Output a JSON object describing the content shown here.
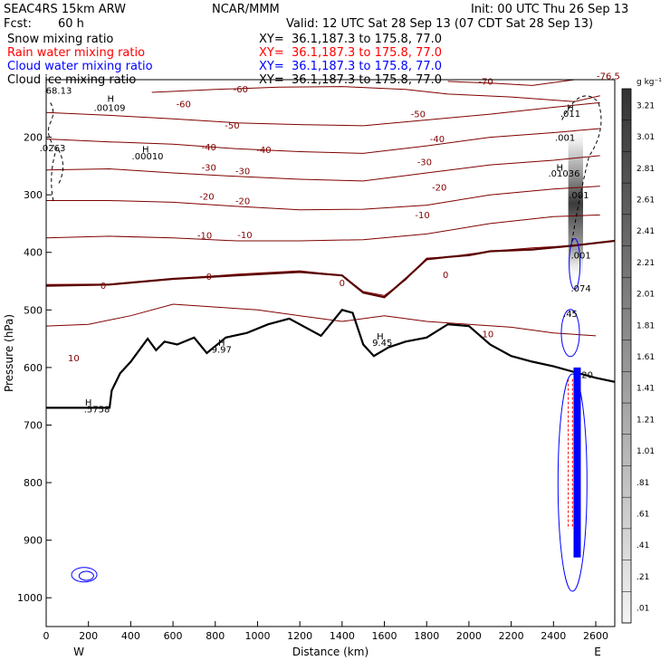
{
  "header": {
    "model": "SEAC4RS 15km ARW",
    "fcst_label": "Fcst:",
    "fcst_value": "60 h",
    "org": "NCAR/MMM",
    "init": "Init: 00 UTC Thu 26 Sep 13",
    "valid": "Valid: 12 UTC Sat 28 Sep 13 (07 CDT Sat 28 Sep 13)"
  },
  "fields": [
    {
      "name": "Snow mixing ratio",
      "xy": "XY=  36.1,187.3 to 175.8, 77.0",
      "color": "#000000"
    },
    {
      "name": "Rain water mixing ratio",
      "xy": "XY=  36.1,187.3 to 175.8, 77.0",
      "color": "#ff0000"
    },
    {
      "name": "Cloud water mixing ratio",
      "xy": "XY=  36.1,187.3 to 175.8, 77.0",
      "color": "#0000ff"
    },
    {
      "name": "Cloud ice mixing ratio",
      "xy": "XY=  36.1,187.3 to 175.8, 77.0",
      "color": "#000000"
    }
  ],
  "chart_data": {
    "type": "contour-cross-section",
    "ylabel": "Pressure (hPa)",
    "xlabel": "Distance (km)",
    "x_ticks": [
      0,
      200,
      400,
      600,
      800,
      1000,
      1200,
      1400,
      1600,
      1800,
      2000,
      2200,
      2400,
      2600
    ],
    "y_ticks": [
      200,
      300,
      400,
      500,
      600,
      700,
      800,
      900,
      1000
    ],
    "xlim": [
      0,
      2690
    ],
    "ylim": [
      100,
      1050
    ],
    "x_end_labels": {
      "left": "W",
      "right": "E"
    },
    "colorbar": {
      "unit": "g kg⁻¹",
      "labels": [
        "3.21",
        "3.01",
        "2.81",
        "2.61",
        "2.41",
        "2.21",
        "2.01",
        "1.81",
        "1.61",
        "1.41",
        "1.21",
        "1.01",
        ".81",
        ".61",
        ".41",
        ".21",
        ".01"
      ]
    },
    "temperature_isotherms": [
      {
        "value": -70,
        "label": "-70",
        "points": [
          [
            1900,
            103
          ],
          [
            2100,
            106
          ],
          [
            2300,
            110
          ],
          [
            2500,
            100
          ]
        ]
      },
      {
        "value": -60,
        "label": "-60",
        "points": [
          [
            500,
            122
          ],
          [
            800,
            117
          ],
          [
            1100,
            113
          ],
          [
            1400,
            112
          ],
          [
            1700,
            117
          ],
          [
            1900,
            125
          ],
          [
            2200,
            130
          ],
          [
            2500,
            138
          ],
          [
            2620,
            128
          ]
        ]
      },
      {
        "value": -50,
        "label": "-50",
        "points": [
          [
            0,
            157
          ],
          [
            300,
            162
          ],
          [
            600,
            168
          ],
          [
            900,
            175
          ],
          [
            1200,
            178
          ],
          [
            1500,
            180
          ],
          [
            1800,
            170
          ],
          [
            2100,
            160
          ],
          [
            2400,
            148
          ],
          [
            2620,
            140
          ]
        ]
      },
      {
        "value": -40,
        "label": "-40",
        "points": [
          [
            0,
            203
          ],
          [
            300,
            208
          ],
          [
            600,
            212
          ],
          [
            900,
            220
          ],
          [
            1200,
            225
          ],
          [
            1500,
            228
          ],
          [
            1800,
            215
          ],
          [
            2100,
            200
          ],
          [
            2400,
            192
          ],
          [
            2620,
            185
          ]
        ]
      },
      {
        "value": -30,
        "label": "-30",
        "points": [
          [
            0,
            257
          ],
          [
            300,
            255
          ],
          [
            600,
            262
          ],
          [
            900,
            268
          ],
          [
            1200,
            273
          ],
          [
            1500,
            276
          ],
          [
            1800,
            262
          ],
          [
            2100,
            248
          ],
          [
            2400,
            240
          ],
          [
            2620,
            232
          ]
        ]
      },
      {
        "value": -20,
        "label": "-20",
        "points": [
          [
            0,
            310
          ],
          [
            300,
            310
          ],
          [
            600,
            313
          ],
          [
            900,
            320
          ],
          [
            1200,
            326
          ],
          [
            1500,
            325
          ],
          [
            1800,
            318
          ],
          [
            2100,
            300
          ],
          [
            2400,
            290
          ],
          [
            2620,
            285
          ]
        ]
      },
      {
        "value": -10,
        "label": "-10",
        "points": [
          [
            0,
            375
          ],
          [
            300,
            372
          ],
          [
            600,
            375
          ],
          [
            900,
            380
          ],
          [
            1200,
            380
          ],
          [
            1500,
            378
          ],
          [
            1800,
            368
          ],
          [
            2100,
            350
          ],
          [
            2400,
            338
          ],
          [
            2620,
            335
          ]
        ]
      },
      {
        "value": 0,
        "label": "0",
        "points": [
          [
            0,
            456
          ],
          [
            300,
            455
          ],
          [
            600,
            446
          ],
          [
            900,
            438
          ],
          [
            1200,
            432
          ],
          [
            1400,
            440
          ],
          [
            1500,
            468
          ],
          [
            1600,
            475
          ],
          [
            1700,
            448
          ],
          [
            1800,
            410
          ],
          [
            1900,
            408
          ],
          [
            2100,
            398
          ],
          [
            2300,
            392
          ],
          [
            2500,
            388
          ],
          [
            2690,
            380
          ]
        ]
      },
      {
        "value": 10,
        "label": "10",
        "points": [
          [
            0,
            528
          ],
          [
            200,
            525
          ],
          [
            400,
            510
          ],
          [
            600,
            490
          ],
          [
            800,
            495
          ],
          [
            1000,
            500
          ],
          [
            1200,
            510
          ],
          [
            1400,
            520
          ],
          [
            1600,
            510
          ],
          [
            1800,
            520
          ],
          [
            2000,
            525
          ],
          [
            2200,
            530
          ],
          [
            2400,
            540
          ],
          [
            2600,
            545
          ]
        ]
      }
    ],
    "bold_lines": [
      {
        "name": "freezing-level",
        "points": [
          [
            0,
            458
          ],
          [
            300,
            456
          ],
          [
            600,
            446
          ],
          [
            900,
            440
          ],
          [
            1200,
            434
          ],
          [
            1400,
            440
          ],
          [
            1500,
            470
          ],
          [
            1600,
            478
          ],
          [
            1700,
            446
          ],
          [
            1800,
            412
          ],
          [
            1900,
            408
          ],
          [
            2000,
            405
          ],
          [
            2100,
            398
          ],
          [
            2300,
            395
          ],
          [
            2500,
            388
          ],
          [
            2690,
            380
          ]
        ]
      },
      {
        "name": "terrain",
        "points": [
          [
            0,
            670
          ],
          [
            300,
            670
          ],
          [
            310,
            640
          ],
          [
            350,
            610
          ],
          [
            400,
            590
          ],
          [
            480,
            550
          ],
          [
            520,
            570
          ],
          [
            560,
            555
          ],
          [
            620,
            560
          ],
          [
            700,
            548
          ],
          [
            760,
            575
          ],
          [
            850,
            548
          ],
          [
            950,
            540
          ],
          [
            1050,
            525
          ],
          [
            1150,
            515
          ],
          [
            1300,
            545
          ],
          [
            1400,
            500
          ],
          [
            1450,
            505
          ],
          [
            1500,
            560
          ],
          [
            1550,
            580
          ],
          [
            1620,
            565
          ],
          [
            1700,
            555
          ],
          [
            1800,
            548
          ],
          [
            1900,
            525
          ],
          [
            2000,
            528
          ],
          [
            2100,
            560
          ],
          [
            2200,
            580
          ],
          [
            2300,
            590
          ],
          [
            2400,
            598
          ],
          [
            2500,
            608
          ],
          [
            2600,
            618
          ],
          [
            2690,
            625
          ]
        ]
      }
    ],
    "annotations": [
      {
        "text": "68.13",
        "x": 60,
        "p": 118
      },
      {
        "text": "H",
        "x": 305,
        "p": 132
      },
      {
        "text": ".00109",
        "x": 300,
        "p": 148
      },
      {
        "text": ".0263",
        "x": 30,
        "p": 218
      },
      {
        "text": "H",
        "x": 470,
        "p": 220
      },
      {
        "text": ".00010",
        "x": 480,
        "p": 232
      },
      {
        "text": "H",
        "x": 2480,
        "p": 148
      },
      {
        "text": ".011",
        "x": 2480,
        "p": 158
      },
      {
        "text": ".001",
        "x": 2455,
        "p": 200
      },
      {
        "text": "H",
        "x": 2430,
        "p": 252
      },
      {
        "text": ".01036",
        "x": 2450,
        "p": 262
      },
      {
        "text": ".001",
        "x": 2520,
        "p": 300
      },
      {
        "text": ".001",
        "x": 2530,
        "p": 404
      },
      {
        "text": ".074",
        "x": 2530,
        "p": 462
      },
      {
        "text": ".45",
        "x": 2480,
        "p": 506
      },
      {
        "text": "H",
        "x": 830,
        "p": 556
      },
      {
        "text": "9.97",
        "x": 830,
        "p": 568
      },
      {
        "text": "H",
        "x": 1580,
        "p": 545
      },
      {
        "text": "9.45",
        "x": 1590,
        "p": 556
      },
      {
        "text": "H",
        "x": 200,
        "p": 660
      },
      {
        "text": ".5758",
        "x": 240,
        "p": 672
      },
      {
        "text": "20",
        "x": 2560,
        "p": 612
      }
    ],
    "contour_labels": [
      {
        "text": "-70",
        "x": 2080,
        "p": 102
      },
      {
        "text": "-76.5",
        "x": 2660,
        "p": 93
      },
      {
        "text": "-60",
        "x": 920,
        "p": 116
      },
      {
        "text": "-60",
        "x": 650,
        "p": 142
      },
      {
        "text": "-50",
        "x": 1760,
        "p": 159
      },
      {
        "text": "-50",
        "x": 880,
        "p": 179
      },
      {
        "text": "-40",
        "x": 1850,
        "p": 202
      },
      {
        "text": "-40",
        "x": 770,
        "p": 216
      },
      {
        "text": "-40",
        "x": 1030,
        "p": 221
      },
      {
        "text": "-30",
        "x": 1790,
        "p": 242
      },
      {
        "text": "-30",
        "x": 770,
        "p": 252
      },
      {
        "text": "-30",
        "x": 930,
        "p": 258
      },
      {
        "text": "-20",
        "x": 1860,
        "p": 286
      },
      {
        "text": "-20",
        "x": 760,
        "p": 302
      },
      {
        "text": "-20",
        "x": 930,
        "p": 310
      },
      {
        "text": "-10",
        "x": 1780,
        "p": 334
      },
      {
        "text": "-10",
        "x": 750,
        "p": 370
      },
      {
        "text": "-10",
        "x": 940,
        "p": 369
      },
      {
        "text": "0",
        "x": 770,
        "p": 441
      },
      {
        "text": "0",
        "x": 270,
        "p": 457
      },
      {
        "text": "0",
        "x": 1400,
        "p": 452
      },
      {
        "text": "0",
        "x": 1890,
        "p": 438
      },
      {
        "text": "10",
        "x": 130,
        "p": 583
      },
      {
        "text": "10",
        "x": 2090,
        "p": 541
      }
    ]
  }
}
